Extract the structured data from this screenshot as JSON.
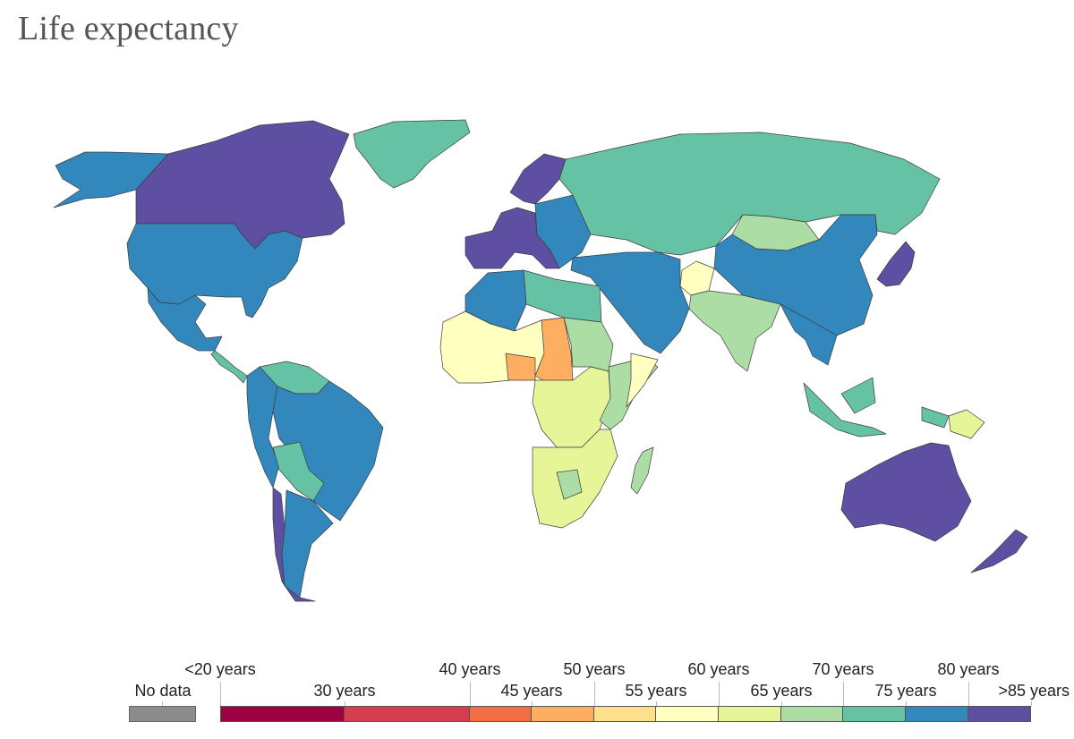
{
  "title": "Life expectancy",
  "colors": {
    "ocean": "#ffffff",
    "no_data": "#8c8c8c",
    "lt20": "#9e0142",
    "b20_40": "#d53e4f",
    "b40_45": "#f46d43",
    "b45_50": "#fdae61",
    "b50_55": "#fee08b",
    "b55_60": "#ffffbf",
    "b60_65": "#e6f598",
    "b65_70": "#abdda4",
    "b70_75": "#66c2a5",
    "b75_80": "#3288bd",
    "gt85": "#5e4fa2"
  },
  "legend": {
    "no_data_label": "No data",
    "bins": [
      {
        "color_key": "lt20"
      },
      {
        "color_key": "b20_40"
      },
      {
        "color_key": "b40_45"
      },
      {
        "color_key": "b45_50"
      },
      {
        "color_key": "b50_55"
      },
      {
        "color_key": "b55_60"
      },
      {
        "color_key": "b60_65"
      },
      {
        "color_key": "b65_70"
      },
      {
        "color_key": "b70_75"
      },
      {
        "color_key": "b75_80"
      },
      {
        "color_key": "gt85"
      }
    ],
    "labels_top": [
      "<20 years",
      "40 years",
      "50 years",
      "60 years",
      "70 years",
      "80 years"
    ],
    "labels_bottom": [
      "30 years",
      "45 years",
      "55 years",
      "65 years",
      "75 years",
      ">85 years"
    ]
  },
  "regions": [
    {
      "name": "canada",
      "color_key": "gt85"
    },
    {
      "name": "alaska",
      "color_key": "b75_80"
    },
    {
      "name": "usa",
      "color_key": "b75_80"
    },
    {
      "name": "mexico",
      "color_key": "b75_80"
    },
    {
      "name": "central-america",
      "color_key": "b70_75"
    },
    {
      "name": "greenland",
      "color_key": "b70_75"
    },
    {
      "name": "brazil",
      "color_key": "b75_80"
    },
    {
      "name": "andean-south-america",
      "color_key": "b75_80"
    },
    {
      "name": "bolivia-paraguay",
      "color_key": "b70_75"
    },
    {
      "name": "argentina",
      "color_key": "b75_80"
    },
    {
      "name": "chile",
      "color_key": "gt85"
    },
    {
      "name": "venezuela-guianas",
      "color_key": "b70_75"
    },
    {
      "name": "western-europe",
      "color_key": "gt85"
    },
    {
      "name": "scandinavia",
      "color_key": "gt85"
    },
    {
      "name": "eastern-europe",
      "color_key": "b75_80"
    },
    {
      "name": "russia-central-asia",
      "color_key": "b70_75"
    },
    {
      "name": "mongolia",
      "color_key": "b65_70"
    },
    {
      "name": "china",
      "color_key": "b75_80"
    },
    {
      "name": "japan",
      "color_key": "gt85"
    },
    {
      "name": "turkey-iran-arabia",
      "color_key": "b75_80"
    },
    {
      "name": "afghanistan",
      "color_key": "b55_60"
    },
    {
      "name": "south-asia",
      "color_key": "b65_70"
    },
    {
      "name": "southeast-asia",
      "color_key": "b75_80"
    },
    {
      "name": "indonesia",
      "color_key": "b70_75"
    },
    {
      "name": "png",
      "color_key": "b60_65"
    },
    {
      "name": "australia",
      "color_key": "gt85"
    },
    {
      "name": "new-zealand",
      "color_key": "gt85"
    },
    {
      "name": "north-africa",
      "color_key": "b75_80"
    },
    {
      "name": "libya-egypt",
      "color_key": "b70_75"
    },
    {
      "name": "sahel-west-africa",
      "color_key": "b55_60"
    },
    {
      "name": "nigeria-chad",
      "color_key": "b45_50"
    },
    {
      "name": "sudan",
      "color_key": "b65_70"
    },
    {
      "name": "central-africa",
      "color_key": "b60_65"
    },
    {
      "name": "east-africa",
      "color_key": "b65_70"
    },
    {
      "name": "somalia",
      "color_key": "b55_60"
    },
    {
      "name": "southern-africa",
      "color_key": "b60_65"
    },
    {
      "name": "botswana",
      "color_key": "b65_70"
    },
    {
      "name": "madagascar",
      "color_key": "b65_70"
    }
  ]
}
